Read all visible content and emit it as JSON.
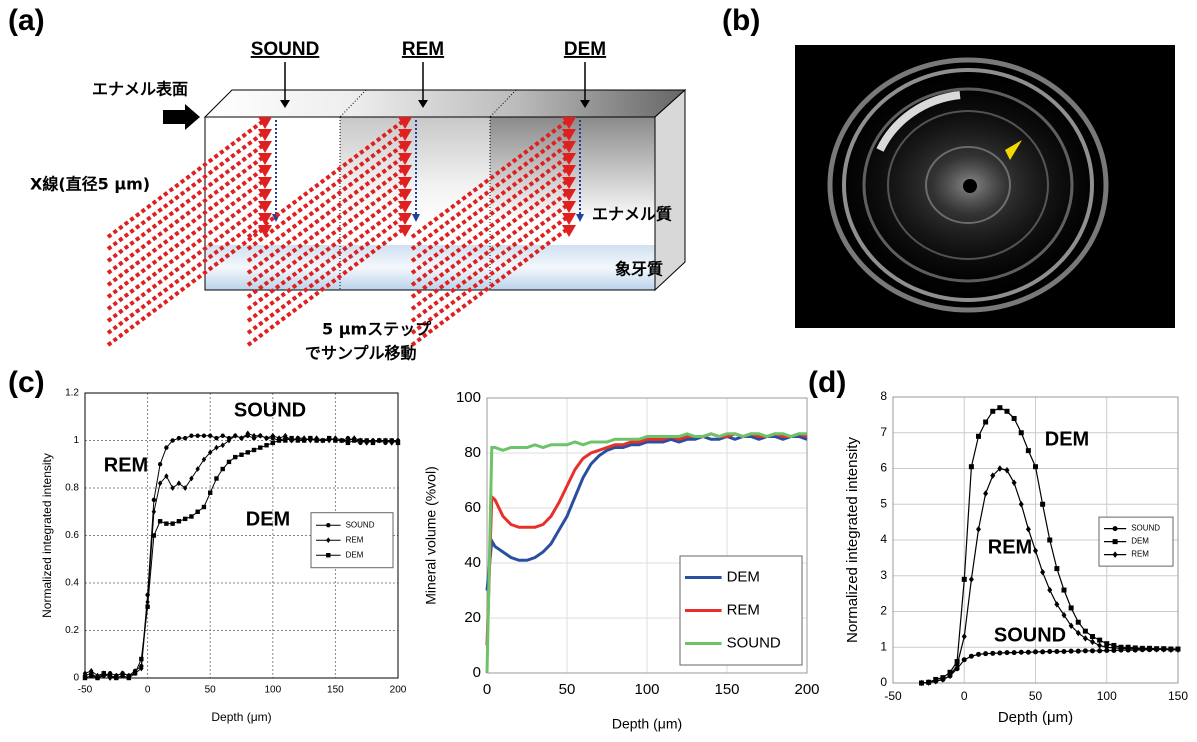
{
  "panel_a": {
    "label": "(a)",
    "columns": [
      "SOUND",
      "REM",
      "DEM"
    ],
    "surface_label": "エナメル表面",
    "xray_label": "X線(直径5 μm)",
    "enamel_label": "エナメル質",
    "dentin_label": "象牙質",
    "step_label": [
      "5 μmステップ",
      "でサンプル移動"
    ]
  },
  "panel_b": {
    "label": "(b)"
  },
  "panel_c_label": "(c)",
  "panel_d_label": "(d)",
  "chart_data": [
    {
      "type": "line",
      "x_label": "Depth (μm)",
      "y_label": "Normalized integrated intensity",
      "xlim": [
        -50,
        200
      ],
      "xticks": [
        -50,
        0,
        50,
        100,
        150,
        200
      ],
      "ylim": [
        0,
        1.2
      ],
      "yticks": [
        0,
        0.2,
        0.4,
        0.6,
        0.8,
        1,
        1.2
      ],
      "grid": true,
      "legend": "center right",
      "annotations": [
        "SOUND",
        "REM",
        "DEM"
      ],
      "x": [
        -50,
        -45,
        -40,
        -35,
        -30,
        -25,
        -20,
        -15,
        -10,
        -5,
        0,
        5,
        10,
        15,
        20,
        25,
        30,
        35,
        40,
        45,
        50,
        55,
        60,
        65,
        70,
        75,
        80,
        85,
        90,
        95,
        100,
        105,
        110,
        115,
        120,
        125,
        130,
        135,
        140,
        145,
        150,
        155,
        160,
        165,
        170,
        175,
        180,
        185,
        190,
        195,
        200
      ],
      "series": [
        {
          "name": "SOUND",
          "color": "#000000",
          "marker": "circle",
          "values": [
            0.01,
            0.02,
            0.0,
            0.01,
            0.02,
            0.01,
            0.02,
            0.01,
            0.03,
            0.05,
            0.35,
            0.75,
            0.9,
            0.97,
            1.0,
            1.01,
            1.01,
            1.02,
            1.02,
            1.02,
            1.02,
            1.01,
            1.02,
            1.01,
            1.02,
            1.01,
            1.02,
            1.01,
            1.02,
            1.01,
            1.01,
            1.0,
            1.01,
            1.0,
            1.01,
            1.0,
            1.01,
            1.0,
            1.0,
            1.01,
            1.0,
            1.0,
            1.01,
            1.0,
            0.99,
            1.0,
            1.0,
            1.0,
            0.99,
            1.0,
            1.0
          ]
        },
        {
          "name": "REM",
          "color": "#000000",
          "marker": "diamond",
          "values": [
            0.02,
            0.03,
            0.01,
            0.02,
            0.0,
            0.01,
            0.02,
            0.01,
            0.02,
            0.04,
            0.32,
            0.7,
            0.82,
            0.85,
            0.8,
            0.82,
            0.8,
            0.84,
            0.88,
            0.92,
            0.95,
            0.97,
            0.98,
            1.0,
            1.02,
            1.01,
            1.03,
            1.02,
            1.02,
            1.01,
            1.02,
            1.01,
            1.02,
            1.0,
            1.01,
            1.01,
            1.0,
            1.01,
            1.0,
            1.0,
            1.01,
            1.0,
            1.0,
            1.01,
            1.0,
            0.99,
            1.0,
            1.0,
            1.0,
            0.99,
            1.0
          ]
        },
        {
          "name": "DEM",
          "color": "#000000",
          "marker": "square",
          "values": [
            0.0,
            0.01,
            0.0,
            0.02,
            0.01,
            0.0,
            0.01,
            0.0,
            0.02,
            0.08,
            0.3,
            0.6,
            0.66,
            0.65,
            0.65,
            0.66,
            0.67,
            0.68,
            0.7,
            0.72,
            0.78,
            0.84,
            0.88,
            0.91,
            0.93,
            0.94,
            0.95,
            0.96,
            0.97,
            0.98,
            0.99,
            1.0,
            1.0,
            1.01,
            1.0,
            1.0,
            1.01,
            1.0,
            1.0,
            1.01,
            1.0,
            1.0,
            0.99,
            1.0,
            1.0,
            1.0,
            0.99,
            1.0,
            1.0,
            1.0,
            0.99
          ]
        }
      ]
    },
    {
      "type": "line",
      "x_label": "Depth (μm)",
      "y_label": "Mineral volume (%vol)",
      "xlim": [
        0,
        200
      ],
      "xticks": [
        0,
        50,
        100,
        150,
        200
      ],
      "ylim": [
        0,
        100
      ],
      "yticks": [
        0,
        20,
        40,
        60,
        80,
        100
      ],
      "grid": true,
      "legend": "lower right",
      "x": [
        0,
        3,
        5,
        10,
        15,
        20,
        25,
        30,
        35,
        40,
        45,
        50,
        55,
        60,
        65,
        70,
        75,
        80,
        85,
        90,
        95,
        100,
        105,
        110,
        115,
        120,
        125,
        130,
        135,
        140,
        145,
        150,
        155,
        160,
        165,
        170,
        175,
        180,
        185,
        190,
        195,
        200
      ],
      "series": [
        {
          "name": "DEM",
          "color": "#2a4f9e",
          "values": [
            30,
            48,
            46,
            44,
            42,
            41,
            41,
            42,
            44,
            47,
            52,
            57,
            64,
            71,
            76,
            79,
            81,
            82,
            82,
            83,
            83,
            84,
            84,
            84,
            85,
            84,
            85,
            85,
            86,
            85,
            85,
            86,
            85,
            86,
            86,
            85,
            86,
            86,
            85,
            86,
            86,
            85
          ]
        },
        {
          "name": "REM",
          "color": "#e8302a",
          "values": [
            10,
            64,
            63,
            57,
            54,
            53,
            53,
            53,
            54,
            57,
            62,
            68,
            74,
            78,
            80,
            81,
            82,
            83,
            83,
            84,
            84,
            85,
            85,
            85,
            86,
            85,
            86,
            86,
            86,
            87,
            86,
            86,
            87,
            86,
            87,
            86,
            86,
            87,
            86,
            86,
            87,
            86
          ]
        },
        {
          "name": "SOUND",
          "color": "#6cc36a",
          "values": [
            0,
            82,
            82,
            81,
            82,
            82,
            82,
            83,
            82,
            83,
            83,
            83,
            84,
            83,
            84,
            84,
            84,
            85,
            85,
            85,
            85,
            86,
            86,
            86,
            86,
            86,
            87,
            86,
            86,
            87,
            86,
            87,
            87,
            86,
            87,
            87,
            86,
            87,
            87,
            86,
            87,
            87
          ]
        }
      ]
    },
    {
      "type": "line",
      "x_label": "Depth (μm)",
      "y_label": "Normalized integrated intensity",
      "xlim": [
        -50,
        150
      ],
      "xticks": [
        -50,
        0,
        50,
        100,
        150
      ],
      "ylim": [
        0,
        8
      ],
      "yticks": [
        0,
        1,
        2,
        3,
        4,
        5,
        6,
        7,
        8
      ],
      "grid": true,
      "legend": "center right",
      "annotations": [
        "DEM",
        "REM",
        "SOUND"
      ],
      "x": [
        -30,
        -25,
        -20,
        -15,
        -10,
        -5,
        0,
        5,
        10,
        15,
        20,
        25,
        30,
        35,
        40,
        45,
        50,
        55,
        60,
        65,
        70,
        75,
        80,
        85,
        90,
        95,
        100,
        105,
        110,
        115,
        120,
        125,
        130,
        135,
        140,
        145,
        150
      ],
      "series": [
        {
          "name": "SOUND",
          "color": "#000000",
          "marker": "circle",
          "values": [
            0,
            0.02,
            0.05,
            0.1,
            0.2,
            0.4,
            0.65,
            0.75,
            0.8,
            0.82,
            0.83,
            0.84,
            0.85,
            0.85,
            0.86,
            0.86,
            0.87,
            0.87,
            0.88,
            0.88,
            0.88,
            0.89,
            0.89,
            0.9,
            0.9,
            0.9,
            0.91,
            0.91,
            0.92,
            0.92,
            0.92,
            0.93,
            0.93,
            0.94,
            0.94,
            0.94,
            0.95
          ]
        },
        {
          "name": "DEM",
          "color": "#000000",
          "marker": "square",
          "values": [
            0,
            0.02,
            0.1,
            0.15,
            0.3,
            0.6,
            2.9,
            6.05,
            6.9,
            7.3,
            7.6,
            7.7,
            7.6,
            7.4,
            7.0,
            6.5,
            6.05,
            5.0,
            4.0,
            3.2,
            2.6,
            2.1,
            1.7,
            1.45,
            1.3,
            1.2,
            1.1,
            1.05,
            1.0,
            1.0,
            0.98,
            0.97,
            0.97,
            0.96,
            0.96,
            0.95,
            0.95
          ]
        },
        {
          "name": "REM",
          "color": "#000000",
          "marker": "diamond",
          "values": [
            0,
            0.01,
            0.05,
            0.1,
            0.2,
            0.5,
            1.3,
            2.9,
            4.3,
            5.3,
            5.8,
            6.0,
            5.95,
            5.6,
            5.0,
            4.3,
            3.7,
            3.1,
            2.6,
            2.2,
            1.9,
            1.6,
            1.4,
            1.25,
            1.15,
            1.05,
            1.0,
            0.98,
            0.97,
            0.96,
            0.96,
            0.95,
            0.95,
            0.94,
            0.94,
            0.93,
            0.93
          ]
        }
      ]
    }
  ]
}
